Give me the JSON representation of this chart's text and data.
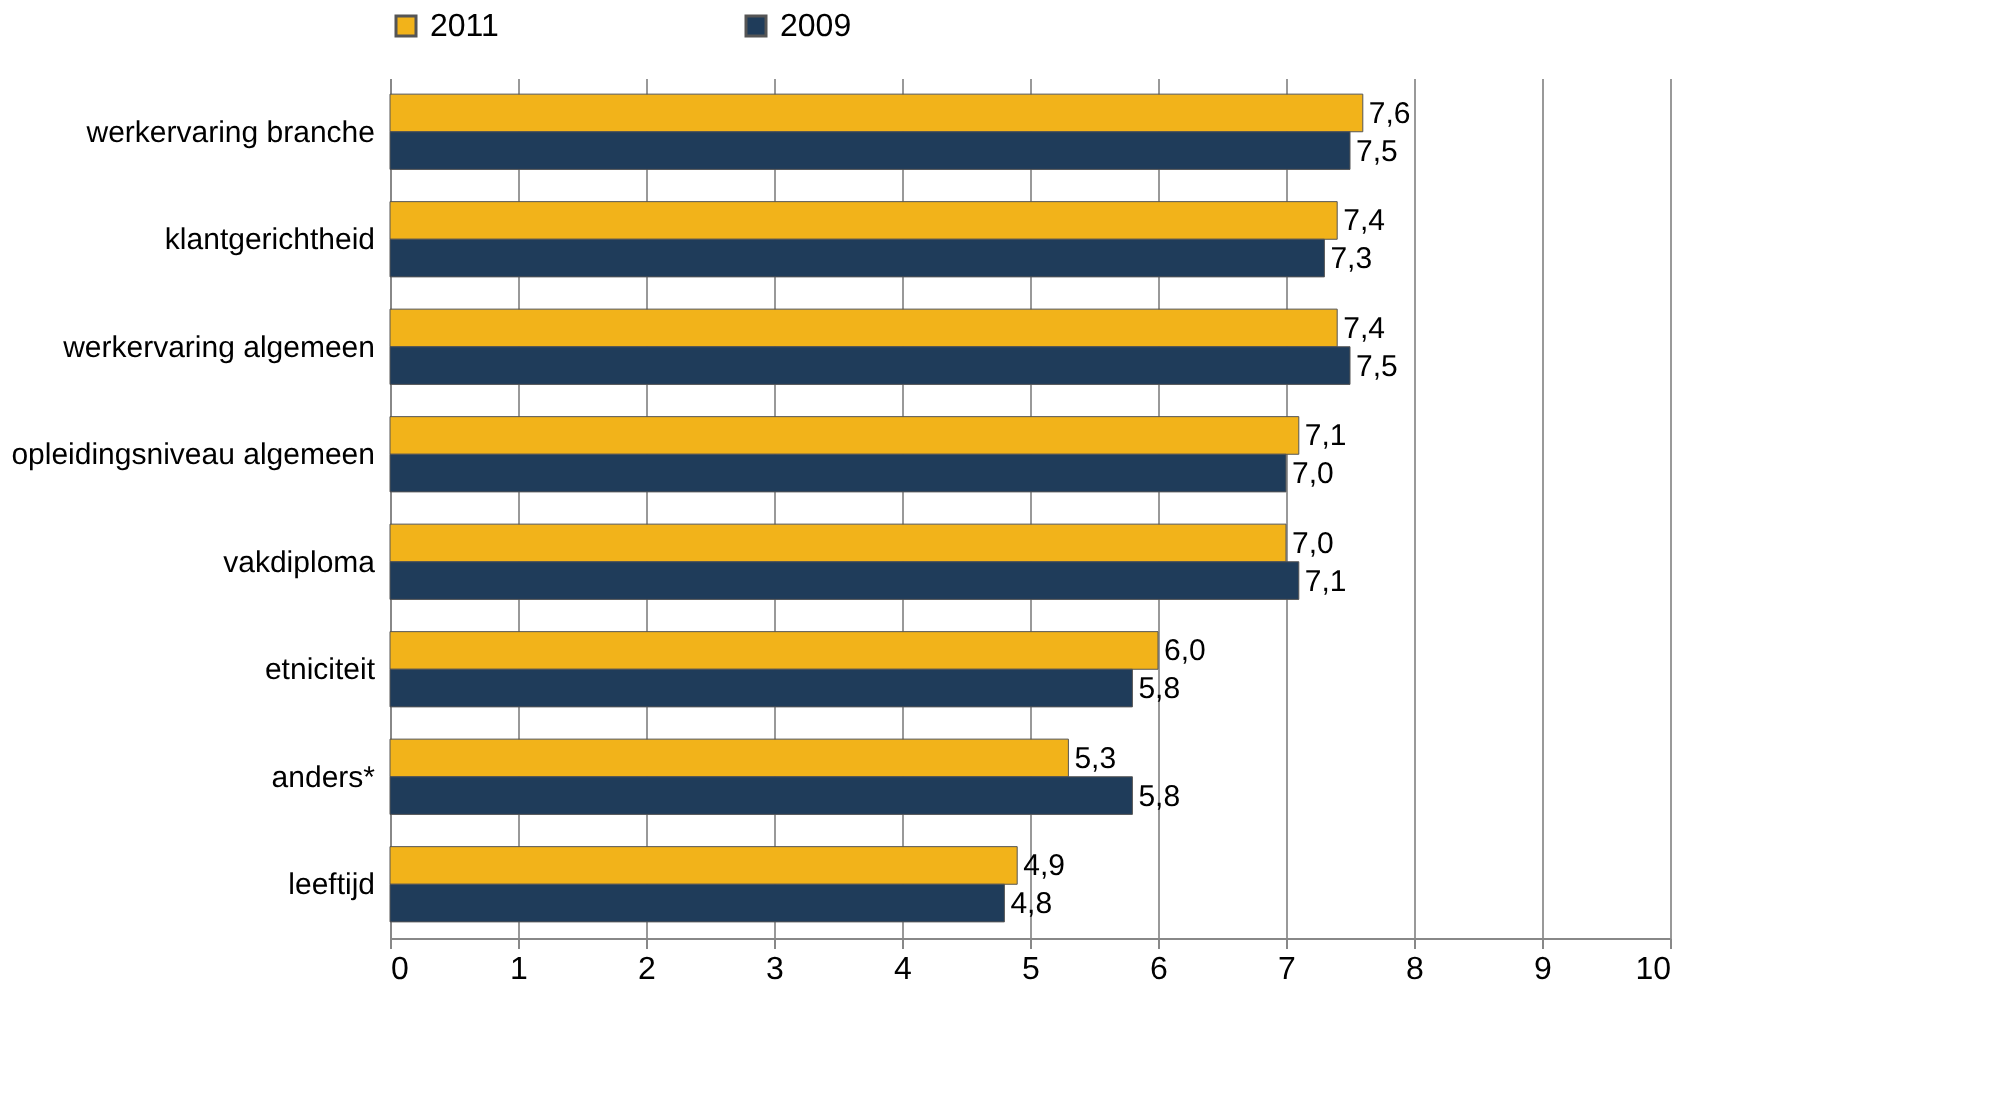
{
  "chart_data": {
    "type": "bar",
    "orientation": "horizontal",
    "categories": [
      "werkervaring branche",
      "klantgerichtheid",
      "werkervaring algemeen",
      "opleidingsniveau algemeen",
      "vakdiploma",
      "etniciteit",
      "anders*",
      "leeftijd"
    ],
    "series": [
      {
        "name": "2011",
        "color": "#f2b31a",
        "values": [
          7.6,
          7.4,
          7.4,
          7.1,
          7.0,
          6.0,
          5.3,
          4.9
        ],
        "value_labels": [
          "7,6",
          "7,4",
          "7,4",
          "7,1",
          "7,0",
          "6,0",
          "5,3",
          "4,9"
        ]
      },
      {
        "name": "2009",
        "color": "#1f3c5a",
        "values": [
          7.5,
          7.3,
          7.5,
          7.0,
          7.1,
          5.8,
          5.8,
          4.8
        ],
        "value_labels": [
          "7,5",
          "7,3",
          "7,5",
          "7,0",
          "7,1",
          "5,8",
          "5,8",
          "4,8"
        ]
      }
    ],
    "xlim": [
      0,
      10
    ],
    "xticks": [
      0,
      1,
      2,
      3,
      4,
      5,
      6,
      7,
      8,
      9,
      10
    ],
    "grid": "x",
    "legend": "top"
  }
}
